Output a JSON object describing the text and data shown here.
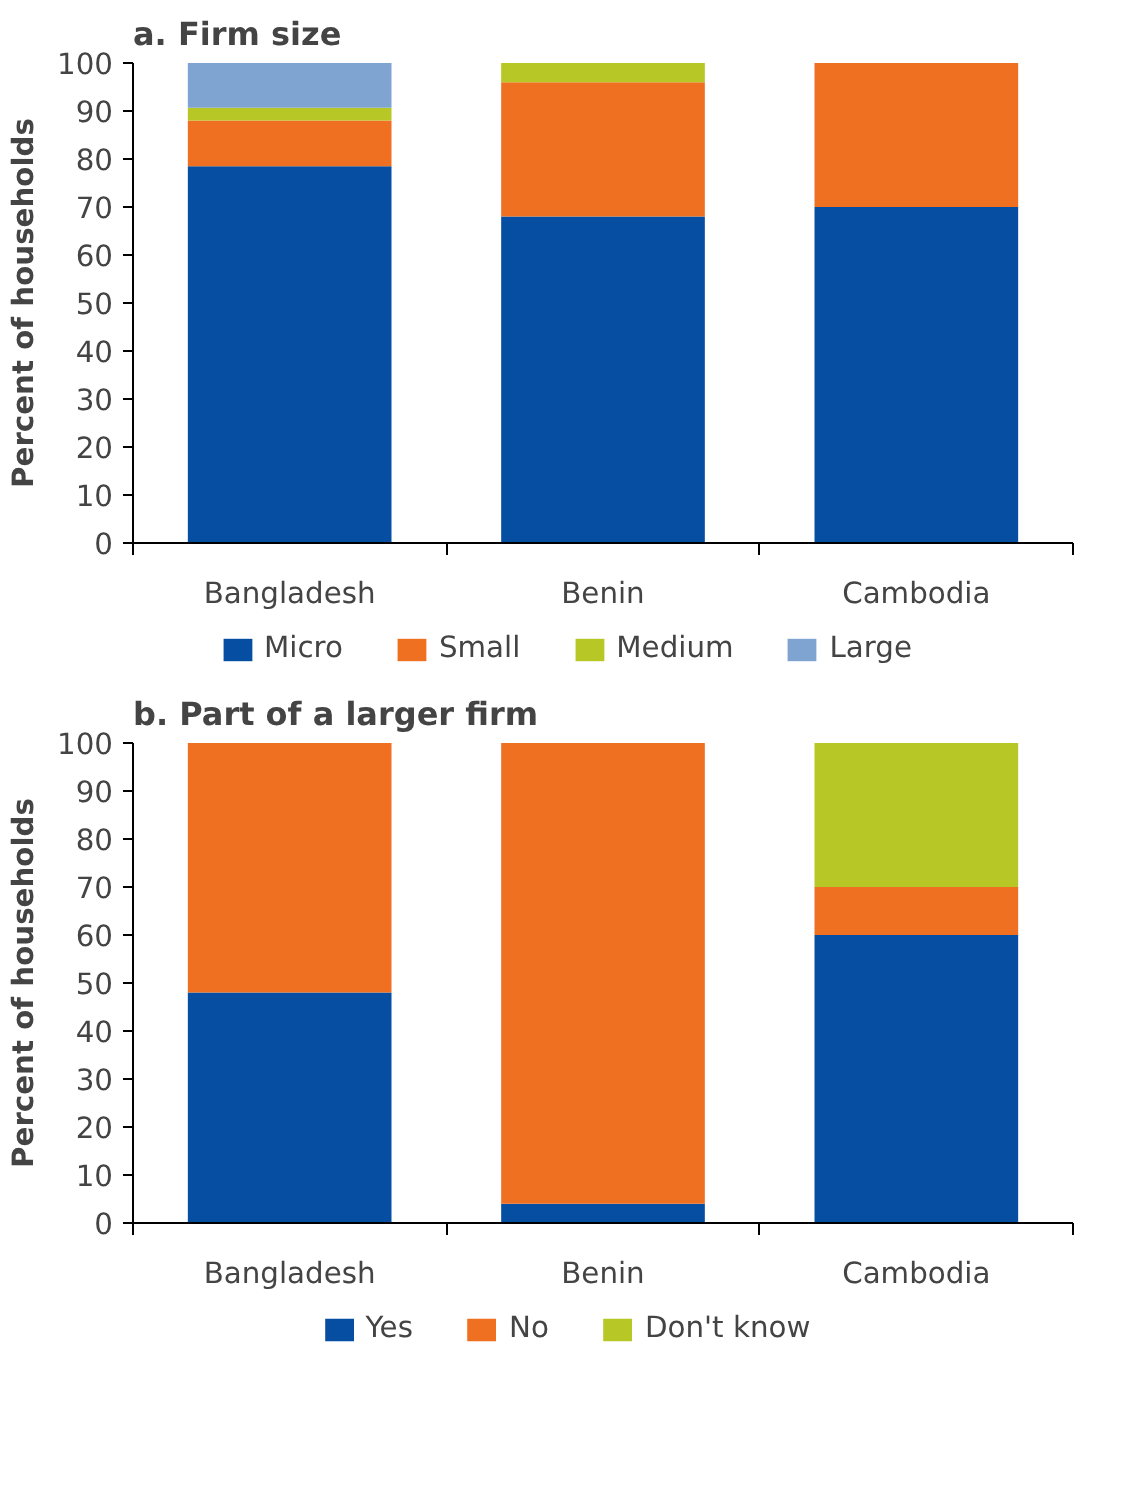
{
  "chart_data": [
    {
      "type": "bar",
      "stacked": true,
      "title": "a. Firm size",
      "ylabel": "Percent of households",
      "categories": [
        "Bangladesh",
        "Benin",
        "Cambodia"
      ],
      "ylim": [
        0,
        100
      ],
      "yticks": [
        0,
        10,
        20,
        30,
        40,
        50,
        60,
        70,
        80,
        90,
        100
      ],
      "grid": false,
      "legend": "bottom",
      "series": [
        {
          "name": "Micro",
          "color": "#054ea2",
          "values": [
            78.5,
            68,
            70
          ]
        },
        {
          "name": "Small",
          "color": "#f07022",
          "values": [
            9.5,
            28,
            30
          ]
        },
        {
          "name": "Medium",
          "color": "#b7c725",
          "values": [
            2.7,
            4,
            0
          ]
        },
        {
          "name": "Large",
          "color": "#80a4d2",
          "values": [
            9.3,
            0,
            0
          ]
        }
      ]
    },
    {
      "type": "bar",
      "stacked": true,
      "title": "b. Part of a larger firm",
      "ylabel": "Percent of households",
      "categories": [
        "Bangladesh",
        "Benin",
        "Cambodia"
      ],
      "ylim": [
        0,
        100
      ],
      "yticks": [
        0,
        10,
        20,
        30,
        40,
        50,
        60,
        70,
        80,
        90,
        100
      ],
      "grid": false,
      "legend": "bottom",
      "series": [
        {
          "name": "Yes",
          "color": "#054ea2",
          "values": [
            48,
            4,
            60
          ]
        },
        {
          "name": "No",
          "color": "#f07022",
          "values": [
            52,
            96,
            10
          ]
        },
        {
          "name": "Don't know",
          "color": "#b7c725",
          "values": [
            0,
            0,
            30
          ]
        }
      ]
    }
  ]
}
